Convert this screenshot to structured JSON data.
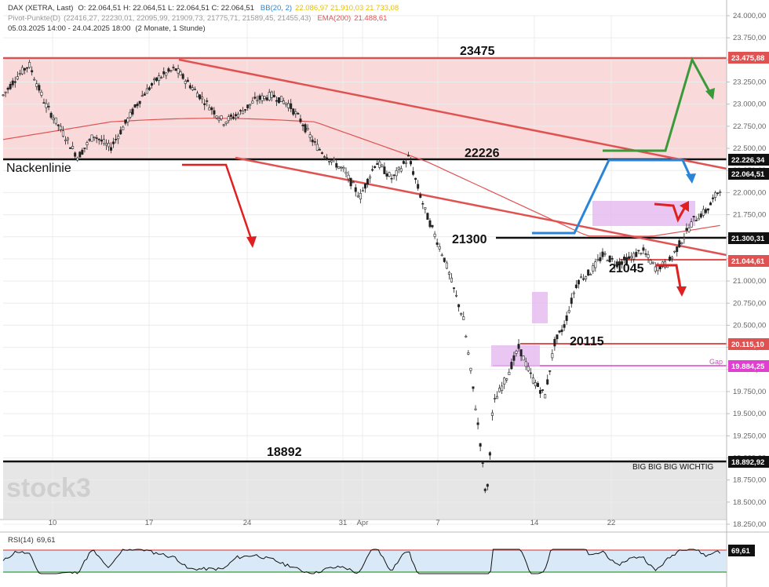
{
  "header": {
    "instrument": "DAX (XETRA, Last)",
    "ohlc": "O: 22.064,51  H: 22.064,51  L: 22.064,51  C: 22.064,51",
    "bb_label": "BB(20, 2)",
    "bb_values": "22.086,97  21.910,03  21.733,08",
    "pivot_label": "Pivot-Punkte(D)",
    "pivot_values": "(22416,27,  22230,01,  22095,99,  21909,73,  21775,71,  21589,45,  21455,43)",
    "ema_label": "EMA(200)",
    "ema_value": "21.488,61",
    "range": "05.03.2025 14:00 - 24.04.2025 18:00",
    "range_note": "(2 Monate, 1 Stunde)"
  },
  "annotations": {
    "l23475": "23475",
    "l22226": "22226",
    "neckline": "Nackenlinie",
    "l21300": "21300",
    "l21045": "21045",
    "l20115": "20115",
    "l18892": "18892",
    "big": "BIG BIG BIG WICHTIG",
    "gap": "Gap",
    "watermark": "stock3"
  },
  "price_tags": {
    "t23475": "23.475,88",
    "t22226": "22.226,34",
    "t22064": "22.064,51",
    "t21300": "21.300,31",
    "t21044": "21.044,61",
    "t20115": "20.115,10",
    "t19884": "19.884,25",
    "t18892": "18.892,92",
    "rsi_val": "69,61"
  },
  "rsi": {
    "label": "RSI(14)",
    "value": "69,61"
  },
  "colors": {
    "resistance_zone": "#f9d9d9",
    "support_zone": "#e6e6e6",
    "red": "#e05252",
    "blue": "#2a85d8",
    "green": "#3a9a3a",
    "magenta": "#e040d0",
    "purple_box": "#e5b9ef",
    "rsi_band": "#d9e9f7"
  },
  "chart_data": {
    "type": "candlestick",
    "title": "DAX (XETRA, Last)",
    "ylim": [
      18250,
      24000
    ],
    "y_ticks": [
      "24.000,00",
      "23.750,00",
      "23.500,00",
      "23.250,00",
      "23.000,00",
      "22.750,00",
      "22.500,00",
      "22.250,00",
      "22.000,00",
      "21.750,00",
      "21.500,00",
      "21.250,00",
      "21.000,00",
      "20.750,00",
      "20.500,00",
      "20.250,00",
      "20.000,00",
      "19.750,00",
      "19.500,00",
      "19.250,00",
      "19.000,00",
      "18.750,00",
      "18.500,00",
      "18.250,00"
    ],
    "y_tick_values": [
      24000,
      23750,
      23500,
      23250,
      23000,
      22750,
      22500,
      22250,
      22000,
      21750,
      21500,
      21250,
      21000,
      20750,
      20500,
      20250,
      20000,
      19750,
      19500,
      19250,
      19000,
      18750,
      18500,
      18250
    ],
    "x_ticks": [
      "10",
      "17",
      "24",
      "31",
      "Apr",
      "7",
      "14",
      "22"
    ],
    "series": [
      {
        "name": "DAX",
        "close_path": [
          [
            0,
            23100
          ],
          [
            0.4,
            23300
          ],
          [
            0.8,
            23450
          ],
          [
            1.3,
            23000
          ],
          [
            1.8,
            22700
          ],
          [
            2.3,
            22400
          ],
          [
            2.8,
            22650
          ],
          [
            3.3,
            22500
          ],
          [
            3.8,
            22800
          ],
          [
            4.3,
            23100
          ],
          [
            4.8,
            23300
          ],
          [
            5.3,
            23400
          ],
          [
            5.8,
            23200
          ],
          [
            6.3,
            23000
          ],
          [
            6.8,
            22800
          ],
          [
            7.3,
            22900
          ],
          [
            7.8,
            23050
          ],
          [
            8.3,
            23100
          ],
          [
            8.8,
            23000
          ],
          [
            9.2,
            22800
          ],
          [
            9.6,
            22550
          ],
          [
            10.0,
            22400
          ],
          [
            10.5,
            22250
          ],
          [
            11.0,
            21950
          ],
          [
            11.5,
            22350
          ],
          [
            12.0,
            22150
          ],
          [
            12.5,
            22400
          ],
          [
            13.0,
            21800
          ],
          [
            13.6,
            21250
          ],
          [
            14.2,
            20550
          ],
          [
            14.7,
            19200
          ],
          [
            14.9,
            18500
          ],
          [
            15.1,
            19600
          ],
          [
            15.5,
            19900
          ],
          [
            15.9,
            20250
          ],
          [
            16.3,
            19900
          ],
          [
            16.7,
            19700
          ],
          [
            17.0,
            20300
          ],
          [
            17.3,
            20500
          ],
          [
            17.7,
            21000
          ],
          [
            18.1,
            21100
          ],
          [
            18.5,
            21300
          ],
          [
            18.9,
            21200
          ],
          [
            19.3,
            21250
          ],
          [
            19.7,
            21350
          ],
          [
            20.1,
            21150
          ],
          [
            20.5,
            21200
          ],
          [
            20.9,
            21450
          ],
          [
            21.3,
            21700
          ],
          [
            21.7,
            21800
          ],
          [
            22.1,
            22050
          ]
        ]
      },
      {
        "name": "EMA(200)",
        "value": 21488.61
      },
      {
        "name": "RSI(14)",
        "value": 69.61
      }
    ],
    "levels": [
      {
        "label": "23475",
        "value": 23475.88
      },
      {
        "label": "22226",
        "value": 22226.34
      },
      {
        "label": "21300",
        "value": 21300.31
      },
      {
        "label": "21045",
        "value": 21044.61
      },
      {
        "label": "20115",
        "value": 20115.1
      },
      {
        "label": "Gap",
        "value": 19884.25
      },
      {
        "label": "18892",
        "value": 18892.92
      }
    ]
  }
}
